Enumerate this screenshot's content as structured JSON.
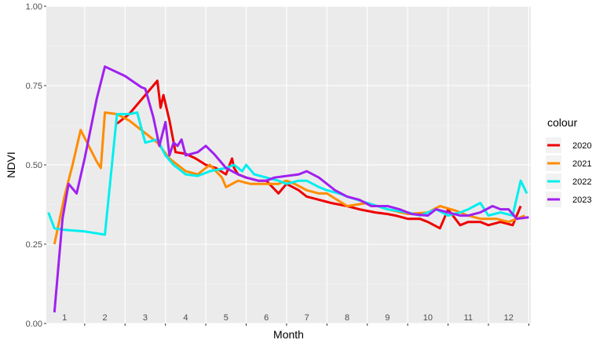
{
  "chart_data": {
    "type": "line",
    "title": "",
    "xlabel": "Month",
    "ylabel": "NDVI",
    "xlim": [
      0.55,
      12.55
    ],
    "ylim": [
      0,
      1
    ],
    "x_ticks": [
      "1",
      "2",
      "3",
      "4",
      "5",
      "6",
      "7",
      "8",
      "9",
      "10",
      "11",
      "12"
    ],
    "y_ticks": [
      "0.00",
      "0.25",
      "0.50",
      "0.75",
      "1.00"
    ],
    "y_tick_values": [
      0,
      0.25,
      0.5,
      0.75,
      1.0
    ],
    "grid": true,
    "legend": {
      "title": "colour",
      "position": "right"
    },
    "series": [
      {
        "name": "2020",
        "color": "#ee0000",
        "x": [
          2.3,
          2.6,
          3.0,
          3.3,
          3.38,
          3.45,
          3.6,
          3.75,
          4.0,
          4.25,
          4.5,
          4.75,
          5.0,
          5.15,
          5.2,
          5.3,
          5.5,
          5.8,
          6.0,
          6.3,
          6.5,
          6.8,
          7.0,
          7.3,
          7.6,
          8.0,
          8.3,
          8.7,
          9.0,
          9.2,
          9.5,
          9.8,
          10.0,
          10.3,
          10.5,
          10.8,
          11.0,
          11.3,
          11.5,
          11.8,
          12.1,
          12.3
        ],
        "y": [
          0.63,
          0.66,
          0.72,
          0.765,
          0.68,
          0.72,
          0.64,
          0.54,
          0.535,
          0.52,
          0.5,
          0.49,
          0.47,
          0.52,
          0.49,
          0.47,
          0.46,
          0.45,
          0.45,
          0.41,
          0.44,
          0.42,
          0.4,
          0.39,
          0.38,
          0.37,
          0.36,
          0.35,
          0.345,
          0.34,
          0.33,
          0.33,
          0.32,
          0.3,
          0.36,
          0.31,
          0.32,
          0.32,
          0.31,
          0.32,
          0.31,
          0.37
        ]
      },
      {
        "name": "2021",
        "color": "#ff8c00",
        "x": [
          0.75,
          1.0,
          1.2,
          1.4,
          1.6,
          1.8,
          1.9,
          2.0,
          2.3,
          2.6,
          3.0,
          3.3,
          3.6,
          4.0,
          4.3,
          4.6,
          4.9,
          5.0,
          5.3,
          5.6,
          6.0,
          6.3,
          6.5,
          6.7,
          7.0,
          7.3,
          7.5,
          8.0,
          8.5,
          9.0,
          9.5,
          10.0,
          10.3,
          10.7,
          11.0,
          11.3,
          11.7,
          12.0,
          12.4
        ],
        "y": [
          0.25,
          0.4,
          0.5,
          0.61,
          0.56,
          0.51,
          0.49,
          0.665,
          0.66,
          0.64,
          0.6,
          0.57,
          0.52,
          0.48,
          0.47,
          0.5,
          0.46,
          0.43,
          0.45,
          0.44,
          0.44,
          0.44,
          0.45,
          0.44,
          0.42,
          0.41,
          0.41,
          0.37,
          0.38,
          0.36,
          0.345,
          0.35,
          0.37,
          0.355,
          0.34,
          0.33,
          0.33,
          0.32,
          0.34
        ]
      },
      {
        "name": "2022",
        "color": "#00eeee",
        "x": [
          0.6,
          0.75,
          1.0,
          1.5,
          2.0,
          2.3,
          2.6,
          2.8,
          3.0,
          3.3,
          3.5,
          3.7,
          4.0,
          4.3,
          4.6,
          5.0,
          5.2,
          5.4,
          5.5,
          5.7,
          6.0,
          6.3,
          6.5,
          6.8,
          7.0,
          7.3,
          7.5,
          7.8,
          8.0,
          8.5,
          9.0,
          9.5,
          9.8,
          10.0,
          10.2,
          10.5,
          10.8,
          11.0,
          11.3,
          11.5,
          11.8,
          12.1,
          12.3,
          12.45
        ],
        "y": [
          0.35,
          0.3,
          0.295,
          0.29,
          0.28,
          0.66,
          0.66,
          0.665,
          0.57,
          0.58,
          0.53,
          0.5,
          0.47,
          0.465,
          0.48,
          0.49,
          0.5,
          0.48,
          0.5,
          0.47,
          0.46,
          0.45,
          0.44,
          0.45,
          0.45,
          0.43,
          0.42,
          0.41,
          0.4,
          0.38,
          0.36,
          0.35,
          0.34,
          0.35,
          0.36,
          0.34,
          0.35,
          0.36,
          0.38,
          0.34,
          0.35,
          0.34,
          0.45,
          0.41
        ]
      },
      {
        "name": "2023",
        "color": "#a020f0",
        "x": [
          0.75,
          0.95,
          1.1,
          1.3,
          1.5,
          1.8,
          2.0,
          2.5,
          2.9,
          3.0,
          3.2,
          3.35,
          3.45,
          3.5,
          3.6,
          3.7,
          3.8,
          3.9,
          4.0,
          4.3,
          4.5,
          4.7,
          5.0,
          5.3,
          5.5,
          5.8,
          6.0,
          6.2,
          6.5,
          6.8,
          7.0,
          7.3,
          7.5,
          7.7,
          8.0,
          8.3,
          8.6,
          9.0,
          9.3,
          9.6,
          10.0,
          10.2,
          10.5,
          10.8,
          11.0,
          11.3,
          11.6,
          11.8,
          12.0,
          12.2,
          12.5
        ],
        "y": [
          0.035,
          0.33,
          0.44,
          0.41,
          0.52,
          0.71,
          0.81,
          0.78,
          0.745,
          0.74,
          0.65,
          0.56,
          0.61,
          0.635,
          0.53,
          0.57,
          0.56,
          0.58,
          0.53,
          0.54,
          0.56,
          0.535,
          0.49,
          0.47,
          0.46,
          0.45,
          0.45,
          0.46,
          0.465,
          0.47,
          0.48,
          0.46,
          0.44,
          0.42,
          0.4,
          0.39,
          0.37,
          0.37,
          0.36,
          0.345,
          0.34,
          0.36,
          0.35,
          0.34,
          0.34,
          0.35,
          0.37,
          0.36,
          0.36,
          0.33,
          0.335
        ]
      }
    ]
  }
}
